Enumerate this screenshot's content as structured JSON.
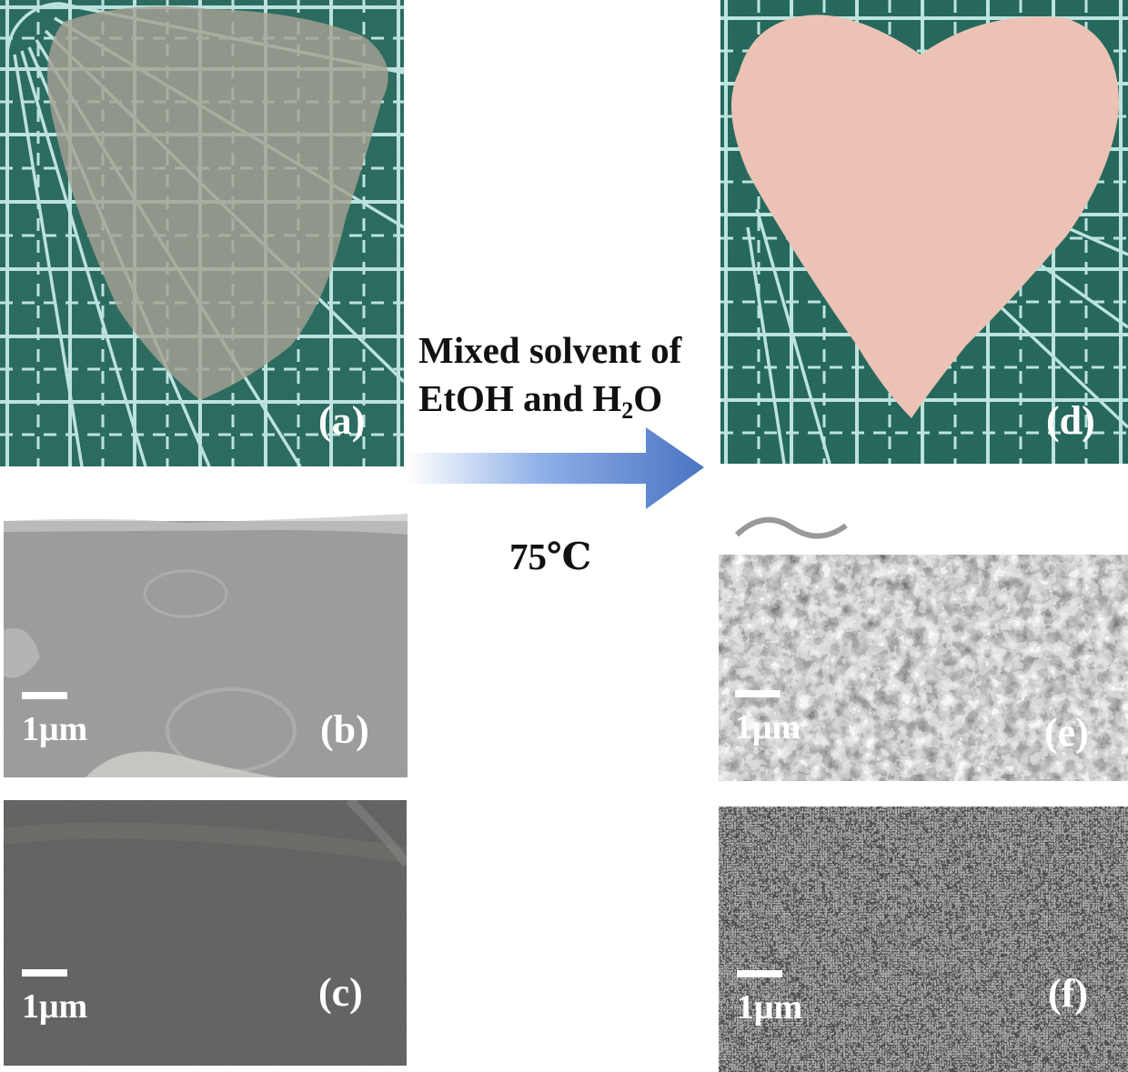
{
  "panels": {
    "a": {
      "label": "(a)"
    },
    "b": {
      "label": "(b)",
      "scale": "1μm"
    },
    "c": {
      "label": "(c)",
      "scale": "1μm"
    },
    "d": {
      "label": "(d)"
    },
    "e": {
      "label": "(e)",
      "scale": "1μm"
    },
    "f": {
      "label": "(f)",
      "scale": "1μm"
    }
  },
  "process": {
    "line1": "Mixed solvent of",
    "line2_prefix": "EtOH and H",
    "line2_sub": "2",
    "line2_suffix": "O",
    "temperature": "75℃"
  },
  "colors": {
    "mat_green": "#1f6458",
    "grid_line": "#bde6e0",
    "film_gray": "#a39f8f",
    "heart_pink": "#eec3b5",
    "arrow_start": "#ffffff",
    "arrow_end": "#4a73c2"
  }
}
